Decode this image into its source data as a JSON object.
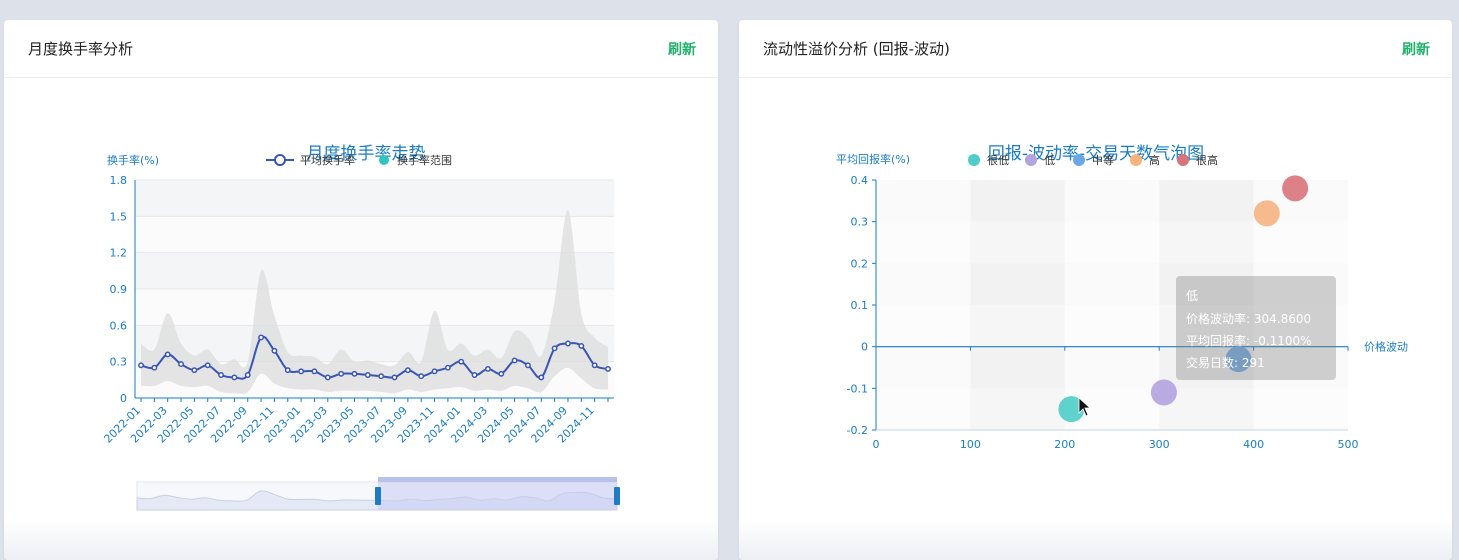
{
  "left_panel": {
    "title": "月度换手率分析",
    "refresh_label": "刷新"
  },
  "right_panel": {
    "title": "流动性溢价分析 (回报-波动)",
    "refresh_label": "刷新"
  },
  "colors": {
    "accent_green": "#23b26d",
    "title_blue": "#1a7dc4",
    "line_blue": "#3a55b3",
    "range_gray": "#d9d9d9",
    "very_low": "#4fcdc8",
    "low": "#b3a3df",
    "medium": "#6aa7e6",
    "high": "#f6b37f",
    "very_high": "#d9737c"
  },
  "chart_data": [
    {
      "type": "line",
      "title": "月度换手率走势",
      "ylabel": "换手率(%)",
      "ylim": [
        0,
        1.8
      ],
      "yticks": [
        "0",
        "0.3",
        "0.6",
        "0.9",
        "1.2",
        "1.5",
        "1.8"
      ],
      "legend": [
        "平均换手率",
        "换手率范围"
      ],
      "legend_placement": "top-center",
      "x": [
        "2022-01",
        "2022-02",
        "2022-03",
        "2022-04",
        "2022-05",
        "2022-06",
        "2022-07",
        "2022-08",
        "2022-09",
        "2022-10",
        "2022-11",
        "2022-12",
        "2023-01",
        "2023-02",
        "2023-03",
        "2023-04",
        "2023-05",
        "2023-06",
        "2023-07",
        "2023-08",
        "2023-09",
        "2023-10",
        "2023-11",
        "2023-12",
        "2024-01",
        "2024-02",
        "2024-03",
        "2024-04",
        "2024-05",
        "2024-06",
        "2024-07",
        "2024-08",
        "2024-09",
        "2024-10",
        "2024-11",
        "2024-12"
      ],
      "x_tick_labels": [
        "2022-01",
        "2022-03",
        "2022-05",
        "2022-07",
        "2022-09",
        "2022-11",
        "2023-01",
        "2023-03",
        "2023-05",
        "2023-07",
        "2023-09",
        "2023-11",
        "2024-01",
        "2024-03",
        "2024-05",
        "2024-07",
        "2024-09",
        "2024-11"
      ],
      "series": [
        {
          "name": "平均换手率",
          "values": [
            0.27,
            0.25,
            0.36,
            0.28,
            0.23,
            0.27,
            0.19,
            0.17,
            0.19,
            0.5,
            0.39,
            0.23,
            0.22,
            0.22,
            0.17,
            0.2,
            0.2,
            0.19,
            0.18,
            0.17,
            0.23,
            0.18,
            0.22,
            0.25,
            0.3,
            0.19,
            0.24,
            0.2,
            0.31,
            0.27,
            0.17,
            0.41,
            0.45,
            0.43,
            0.27,
            0.24
          ]
        },
        {
          "name": "换手率范围",
          "low": [
            0.1,
            0.1,
            0.14,
            0.1,
            0.09,
            0.1,
            0.05,
            0.04,
            0.05,
            0.2,
            0.12,
            0.08,
            0.07,
            0.07,
            0.05,
            0.06,
            0.06,
            0.06,
            0.05,
            0.04,
            0.07,
            0.05,
            0.07,
            0.08,
            0.09,
            0.06,
            0.07,
            0.06,
            0.1,
            0.08,
            0.05,
            0.18,
            0.25,
            0.16,
            0.08,
            0.07
          ],
          "high": [
            0.45,
            0.4,
            0.7,
            0.45,
            0.35,
            0.4,
            0.28,
            0.32,
            0.3,
            1.05,
            0.68,
            0.38,
            0.35,
            0.34,
            0.28,
            0.4,
            0.3,
            0.31,
            0.28,
            0.27,
            0.38,
            0.3,
            0.72,
            0.4,
            0.45,
            0.35,
            0.4,
            0.33,
            0.55,
            0.5,
            0.35,
            0.8,
            1.55,
            0.7,
            0.5,
            0.42
          ]
        }
      ]
    },
    {
      "type": "scatter",
      "title": "回报-波动率-交易天数气泡图",
      "ylabel": "平均回报率(%)",
      "xlabel": "价格波动",
      "xlim": [
        0,
        500
      ],
      "ylim": [
        -0.2,
        0.4
      ],
      "xticks": [
        "0",
        "100",
        "200",
        "300",
        "400",
        "500"
      ],
      "yticks": [
        "-0.2",
        "-0.1",
        "0",
        "0.1",
        "0.2",
        "0.3",
        "0.4"
      ],
      "legend": [
        "很低",
        "低",
        "中等",
        "高",
        "很高"
      ],
      "legend_placement": "top-center",
      "series": [
        {
          "name": "很低",
          "x": 207,
          "y": -0.15,
          "color": "#4fcdc8"
        },
        {
          "name": "低",
          "x": 305,
          "y": -0.11,
          "color": "#b3a3df"
        },
        {
          "name": "中等",
          "x": 384,
          "y": -0.03,
          "color": "#6aa7e6"
        },
        {
          "name": "高",
          "x": 414,
          "y": 0.32,
          "color": "#f6b37f"
        },
        {
          "name": "很高",
          "x": 444,
          "y": 0.38,
          "color": "#d9737c"
        }
      ],
      "tooltip": {
        "name": "低",
        "line1": "价格波动率: 304.8600",
        "line2": "平均回报率: -0.1100%",
        "line3": "交易日数: 291"
      }
    }
  ]
}
